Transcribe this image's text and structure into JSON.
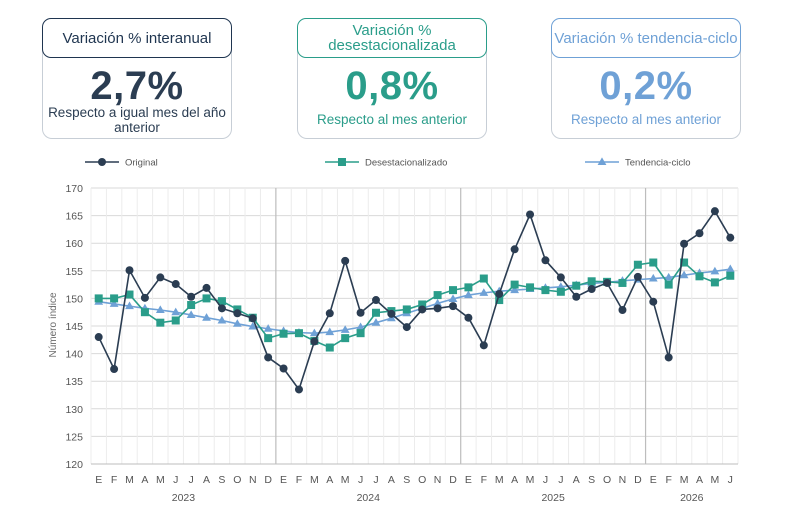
{
  "kpis": [
    {
      "title": "Variación % interanual",
      "value": "2,7%",
      "note": "Respecto a igual mes del año anterior",
      "color": "#1f3550"
    },
    {
      "title": "Variación % desestacionalizada",
      "value": "0,8%",
      "note": "Respecto al mes anterior",
      "color": "#2a9d8a"
    },
    {
      "title": "Variación % tendencia-ciclo",
      "value": "0,2%",
      "note": "Respecto al mes anterior",
      "color": "#6fa1d6"
    }
  ],
  "chart_data": {
    "type": "line",
    "ylabel": "Número índice",
    "ylim": [
      120,
      170
    ],
    "yticks": [
      120,
      125,
      130,
      135,
      140,
      145,
      150,
      155,
      160,
      165,
      170
    ],
    "month_labels": [
      "E",
      "F",
      "M",
      "A",
      "M",
      "J",
      "J",
      "A",
      "S",
      "O",
      "N",
      "D",
      "E",
      "F",
      "M",
      "A",
      "M",
      "J",
      "J",
      "A",
      "S",
      "O",
      "N",
      "D",
      "E",
      "F",
      "M",
      "A",
      "M",
      "J",
      "J",
      "A",
      "S",
      "O",
      "N",
      "D",
      "E",
      "F",
      "M",
      "A",
      "M",
      "J"
    ],
    "years": [
      {
        "label": "2023",
        "start": 0,
        "end": 11
      },
      {
        "label": "2024",
        "start": 12,
        "end": 23
      },
      {
        "label": "2025",
        "start": 24,
        "end": 35
      },
      {
        "label": "2026",
        "start": 36,
        "end": 41
      }
    ],
    "grid": true,
    "legend_position": "top",
    "series": [
      {
        "name": "Original",
        "color": "#2b3d52",
        "marker": "circle",
        "values": [
          143.0,
          137.2,
          155.1,
          150.1,
          153.8,
          152.6,
          150.3,
          151.9,
          148.2,
          147.3,
          146.4,
          139.3,
          137.3,
          133.5,
          142.2,
          147.3,
          156.8,
          147.4,
          149.7,
          147.2,
          144.8,
          148.0,
          148.2,
          148.6,
          146.5,
          141.5,
          150.8,
          158.9,
          165.2,
          156.9,
          153.8,
          150.3,
          151.7,
          152.8,
          147.9,
          153.9,
          149.4,
          139.3,
          159.9,
          161.8,
          165.8,
          161.0
        ]
      },
      {
        "name": "Desestacionalizado",
        "color": "#2a9d8a",
        "marker": "square",
        "values": [
          150.0,
          150.0,
          150.7,
          147.5,
          145.6,
          146.0,
          148.8,
          150.0,
          149.5,
          148.0,
          146.5,
          142.8,
          143.6,
          143.7,
          142.3,
          141.1,
          142.8,
          143.7,
          147.4,
          147.7,
          148.0,
          148.9,
          150.6,
          151.5,
          152.0,
          153.6,
          149.7,
          152.5,
          152.0,
          151.5,
          151.2,
          152.3,
          153.1,
          153.0,
          152.8,
          156.1,
          156.5,
          152.5,
          156.5,
          154.0,
          152.9,
          154.1
        ]
      },
      {
        "name": "Tendencia-ciclo",
        "color": "#6fa1d6",
        "marker": "triangle",
        "values": [
          149.4,
          149.0,
          148.6,
          148.2,
          147.9,
          147.5,
          147.0,
          146.5,
          146.0,
          145.4,
          144.9,
          144.5,
          144.1,
          143.8,
          143.7,
          143.9,
          144.3,
          144.8,
          145.6,
          146.4,
          147.3,
          148.2,
          149.1,
          149.9,
          150.6,
          151.0,
          151.3,
          151.5,
          151.7,
          151.9,
          152.1,
          152.4,
          152.7,
          152.9,
          153.2,
          153.4,
          153.6,
          153.8,
          154.2,
          154.6,
          154.9,
          155.3
        ]
      }
    ]
  }
}
